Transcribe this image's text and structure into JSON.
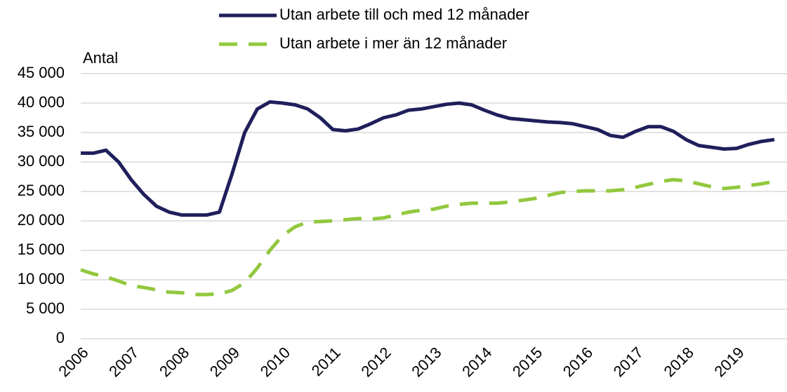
{
  "chart_data": {
    "type": "line",
    "y_label": "Antal",
    "categories": [
      "2006",
      null,
      null,
      null,
      "2007",
      null,
      null,
      null,
      "2008",
      null,
      null,
      null,
      "2009",
      null,
      null,
      null,
      "2010",
      null,
      null,
      null,
      "2011",
      null,
      null,
      null,
      "2012",
      null,
      null,
      null,
      "2013",
      null,
      null,
      null,
      "2014",
      null,
      null,
      null,
      "2015",
      null,
      null,
      null,
      "2016",
      null,
      null,
      null,
      "2017",
      null,
      null,
      null,
      "2018",
      null,
      null,
      null,
      "2019",
      null,
      null,
      null
    ],
    "series": [
      {
        "name": "Utan arbete till och med 12 månader",
        "color": "#1f1f5c",
        "dash": false,
        "values": [
          31500,
          31500,
          32000,
          30000,
          27000,
          24500,
          22500,
          21500,
          21000,
          21000,
          21000,
          21500,
          28000,
          35000,
          39000,
          40200,
          40000,
          39700,
          39000,
          37500,
          35500,
          35300,
          35600,
          36500,
          37500,
          38000,
          38800,
          39000,
          39400,
          39800,
          40000,
          39700,
          38800,
          38000,
          37400,
          37200,
          37000,
          36800,
          36700,
          36500,
          36000,
          35500,
          34500,
          34200,
          35200,
          36000,
          36000,
          35200,
          33800,
          32800,
          32500,
          32200,
          32300,
          33000,
          33500,
          33800
        ]
      },
      {
        "name": "Utan arbete i mer än 12 månader",
        "color": "#92c83e",
        "dash": true,
        "values": [
          11700,
          11000,
          10500,
          9800,
          9000,
          8700,
          8300,
          7900,
          7800,
          7500,
          7500,
          7600,
          8200,
          9500,
          12000,
          15000,
          17500,
          19000,
          19800,
          19900,
          20000,
          20200,
          20400,
          20300,
          20500,
          21000,
          21500,
          21800,
          22000,
          22500,
          22800,
          23000,
          23000,
          23000,
          23200,
          23500,
          23800,
          24300,
          24800,
          25000,
          25100,
          25100,
          25100,
          25300,
          25700,
          26200,
          26700,
          27000,
          26800,
          26300,
          25800,
          25500,
          25700,
          26000,
          26300,
          26700
        ]
      }
    ],
    "ylim": [
      0,
      45000
    ],
    "yticks": [
      0,
      {
        "value": 5000,
        "label": "5 000"
      },
      {
        "value": 10000,
        "label": "10 000"
      },
      {
        "value": 15000,
        "label": "15 000"
      },
      {
        "value": 20000,
        "label": "20 000"
      },
      {
        "value": 25000,
        "label": "25 000"
      },
      {
        "value": 30000,
        "label": "30 000"
      },
      {
        "value": 35000,
        "label": "35 000"
      },
      {
        "value": 40000,
        "label": "40 000"
      },
      {
        "value": 45000,
        "label": "45 000"
      }
    ],
    "grid": true,
    "legend": "top"
  }
}
